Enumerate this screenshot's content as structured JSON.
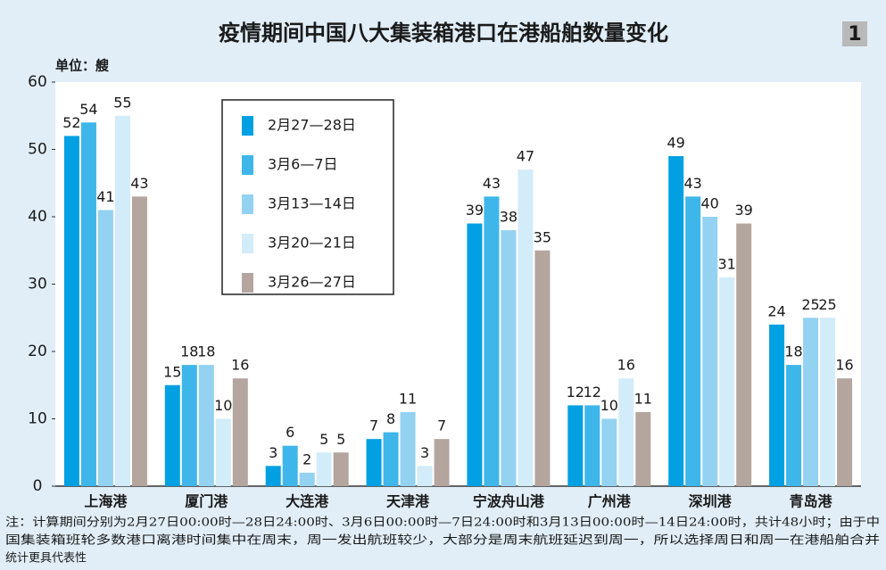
{
  "chart_data": {
    "type": "bar",
    "title": "疫情期间中国八大集装箱港口在港船舶数量变化",
    "badge": "1",
    "y_label": "单位：艘",
    "categories": [
      "上海港",
      "厦门港",
      "大连港",
      "天津港",
      "宁波舟山港",
      "广州港",
      "深圳港",
      "青岛港"
    ],
    "series": [
      {
        "name": "2月27—28日",
        "color": "#00a0e2",
        "values": [
          52,
          15,
          3,
          7,
          39,
          12,
          49,
          24
        ]
      },
      {
        "name": "3月6—7日",
        "color": "#3eb6ea",
        "values": [
          54,
          18,
          6,
          8,
          43,
          12,
          43,
          18
        ]
      },
      {
        "name": "3月13—14日",
        "color": "#93d2f1",
        "values": [
          41,
          18,
          2,
          11,
          38,
          10,
          40,
          25
        ]
      },
      {
        "name": "3月20—21日",
        "color": "#d2ecf9",
        "values": [
          55,
          10,
          5,
          3,
          47,
          16,
          31,
          25
        ]
      },
      {
        "name": "3月26—27日",
        "color": "#b4a59f",
        "values": [
          43,
          16,
          5,
          7,
          35,
          11,
          39,
          16
        ]
      }
    ],
    "ylim": [
      0,
      60
    ],
    "yticks": [
      0,
      10,
      20,
      30,
      40,
      50,
      60
    ],
    "note": [
      "注：计算期间分别为2月27日00:00时—28日24:00时、3月6日00:00时—7日24:00时和3月13日00:00时—14日24:00时，共计48小时；由于中",
      "国集装箱班轮多数港口离港时间集中在周末，周一发出航班较少，大部分是周末航班延迟到周一，所以选择周日和周一在港船舶合并",
      "统计更具代表性"
    ]
  }
}
